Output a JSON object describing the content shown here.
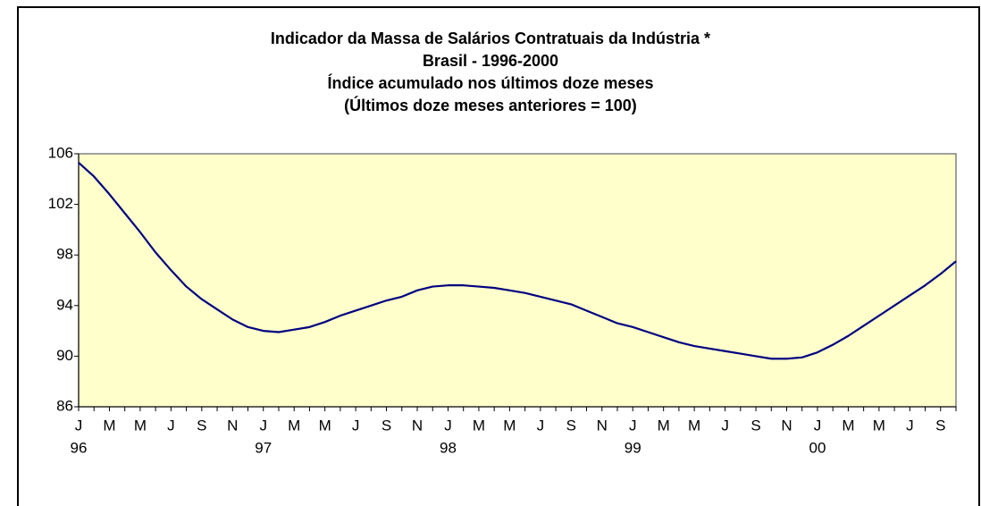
{
  "chart_data": {
    "type": "line",
    "title": [
      "Indicador da Massa de Salários Contratuais da Indústria *",
      "Brasil - 1996-2000",
      "Índice acumulado nos últimos doze meses",
      "(Últimos doze meses anteriores = 100)"
    ],
    "categories": [
      "J",
      null,
      "M",
      null,
      "M",
      null,
      "J",
      null,
      "S",
      null,
      "N",
      null,
      "J",
      null,
      "M",
      null,
      "M",
      null,
      "J",
      null,
      "S",
      null,
      "N",
      null,
      "J",
      null,
      "M",
      null,
      "M",
      null,
      "J",
      null,
      "S",
      null,
      "N",
      null,
      "J",
      null,
      "M",
      null,
      "M",
      null,
      "J",
      null,
      "S",
      null,
      "N",
      null,
      "J",
      null,
      "M",
      null,
      "M",
      null,
      "J",
      null,
      "S",
      null
    ],
    "year_labels": [
      "96",
      null,
      null,
      null,
      null,
      null,
      null,
      null,
      null,
      null,
      null,
      null,
      "97",
      null,
      null,
      null,
      null,
      null,
      null,
      null,
      null,
      null,
      null,
      null,
      "98",
      null,
      null,
      null,
      null,
      null,
      null,
      null,
      null,
      null,
      null,
      null,
      "99",
      null,
      null,
      null,
      null,
      null,
      null,
      null,
      null,
      null,
      null,
      null,
      "00",
      null,
      null,
      null,
      null,
      null,
      null,
      null,
      null,
      null
    ],
    "series": [
      {
        "color": "#000080",
        "values": [
          105.3,
          104.2,
          102.8,
          101.3,
          99.8,
          98.2,
          96.8,
          95.5,
          94.5,
          93.7,
          92.9,
          92.3,
          92.0,
          91.9,
          92.1,
          92.3,
          92.7,
          93.2,
          93.6,
          94.0,
          94.4,
          94.7,
          95.2,
          95.5,
          95.6,
          95.6,
          95.5,
          95.4,
          95.2,
          95.0,
          94.7,
          94.4,
          94.1,
          93.6,
          93.1,
          92.6,
          92.3,
          91.9,
          91.5,
          91.1,
          90.8,
          90.6,
          90.4,
          90.2,
          90.0,
          89.8,
          89.8,
          89.9,
          90.3,
          90.9,
          91.6,
          92.4,
          93.2,
          94.0,
          94.8,
          95.6,
          96.5,
          97.5
        ]
      }
    ],
    "ylim": [
      86,
      106
    ],
    "yticks": [
      86,
      90,
      94,
      98,
      102,
      106
    ],
    "grid": false,
    "plot_background": "#ffffcc"
  }
}
